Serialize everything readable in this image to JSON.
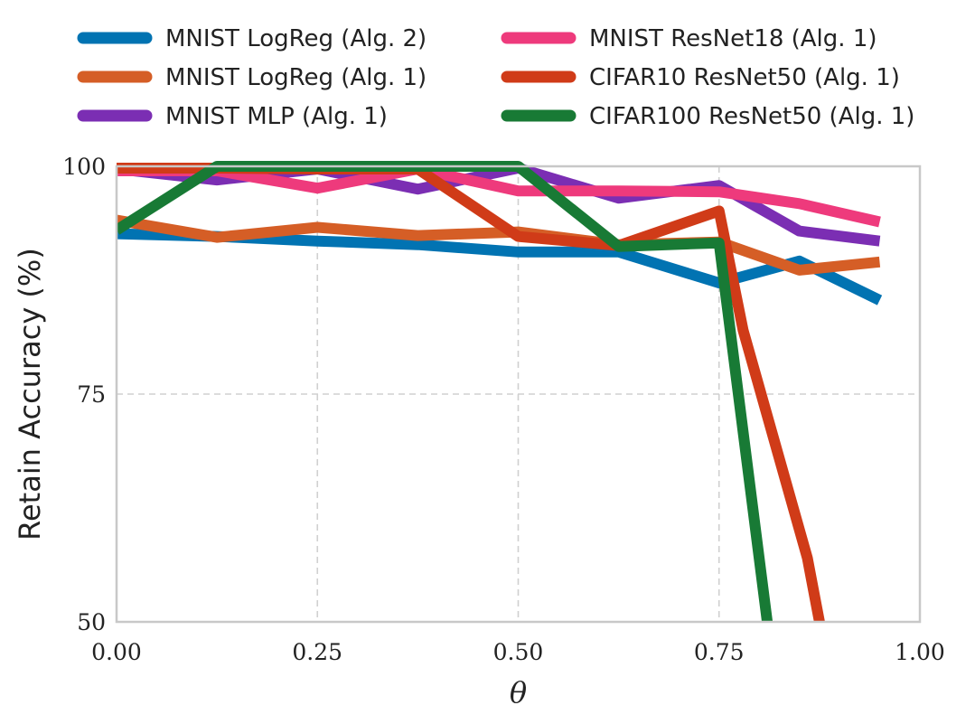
{
  "chart_data": {
    "type": "line",
    "title": "",
    "xlabel": "θ",
    "ylabel": "Retain Accuracy (%)",
    "xlim": [
      0.0,
      1.0
    ],
    "ylim": [
      50,
      100
    ],
    "xticks": [
      0.0,
      0.25,
      0.5,
      0.75,
      1.0
    ],
    "xtick_labels": [
      "0.00",
      "0.25",
      "0.50",
      "0.75",
      "1.00"
    ],
    "yticks": [
      50,
      75,
      100
    ],
    "ytick_labels": [
      "50",
      "75",
      "100"
    ],
    "grid": true,
    "legend_position": "top",
    "series": [
      {
        "name": "MNIST LogReg (Alg. 2)",
        "color": "#0173b2",
        "x": [
          0.0,
          0.125,
          0.25,
          0.375,
          0.5,
          0.625,
          0.75,
          0.85,
          0.95
        ],
        "y": [
          92.6,
          92.3,
          91.8,
          91.4,
          90.6,
          90.6,
          87.2,
          89.6,
          85.3
        ]
      },
      {
        "name": "MNIST LogReg (Alg. 1)",
        "color": "#d55e26",
        "x": [
          0.0,
          0.125,
          0.25,
          0.375,
          0.5,
          0.625,
          0.75,
          0.85,
          0.95
        ],
        "y": [
          94.1,
          92.2,
          93.3,
          92.4,
          92.8,
          91.4,
          91.7,
          88.6,
          89.5
        ]
      },
      {
        "name": "MNIST MLP (Alg. 1)",
        "color": "#7b2eb3",
        "x": [
          0.0,
          0.125,
          0.25,
          0.375,
          0.5,
          0.625,
          0.75,
          0.85,
          0.95
        ],
        "y": [
          99.7,
          98.5,
          99.7,
          97.5,
          99.8,
          96.5,
          97.9,
          92.9,
          91.8
        ]
      },
      {
        "name": "MNIST ResNet18 (Alg. 1)",
        "color": "#ee3a7c",
        "x": [
          0.0,
          0.125,
          0.25,
          0.375,
          0.5,
          0.625,
          0.75,
          0.85,
          0.95
        ],
        "y": [
          99.5,
          99.5,
          97.6,
          99.7,
          97.3,
          97.3,
          97.2,
          95.9,
          93.9
        ]
      },
      {
        "name": "CIFAR10 ResNet50 (Alg. 1)",
        "color": "#d03b18",
        "x": [
          0.0,
          0.125,
          0.25,
          0.375,
          0.5,
          0.625,
          0.75,
          0.78,
          0.86,
          0.875
        ],
        "y": [
          99.8,
          99.8,
          99.7,
          99.7,
          92.3,
          91.3,
          95.1,
          82.0,
          57.0,
          50.0
        ]
      },
      {
        "name": "CIFAR100 ResNet50 (Alg. 1)",
        "color": "#187a35",
        "x": [
          0.0,
          0.125,
          0.25,
          0.375,
          0.5,
          0.625,
          0.75,
          0.81
        ],
        "y": [
          93.0,
          100.0,
          100.0,
          100.0,
          100.0,
          91.2,
          91.6,
          50.0
        ]
      }
    ]
  }
}
